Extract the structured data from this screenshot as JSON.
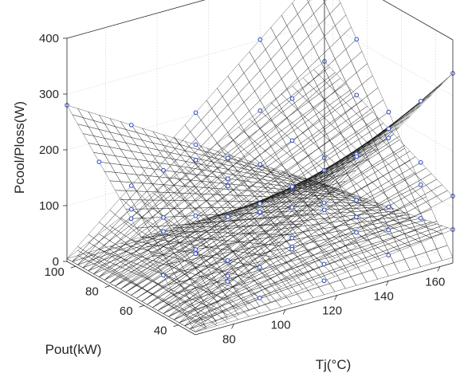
{
  "chart_data": {
    "type": "surface3d",
    "title": "",
    "xlabel": "Tj(°C)",
    "ylabel": "Pout(kW)",
    "zlabel": "Pcool/Ploss(W)",
    "xlim": [
      65,
      165
    ],
    "ylim": [
      30,
      105
    ],
    "zlim": [
      0,
      400
    ],
    "x_ticks": [
      "80",
      "100",
      "120",
      "140",
      "160"
    ],
    "y_ticks": [
      "40",
      "60",
      "80",
      "100"
    ],
    "z_ticks": [
      "0",
      "100",
      "200",
      "300",
      "400"
    ],
    "grid": true,
    "colormap": "viridis",
    "surfaces": [
      {
        "z_at_corners": {
          "xmin_ymin": 5,
          "xmax_ymin": 60,
          "xmin_ymax": 280,
          "xmax_ymax": 10
        }
      },
      {
        "z_at_corners": {
          "xmin_ymin": 5,
          "xmax_ymin": 120,
          "xmin_ymax": 5,
          "xmax_ymax": 230
        }
      },
      {
        "z_at_corners": {
          "xmin_ymin": 5,
          "xmax_ymin": 340,
          "xmin_ymax": 5,
          "xmax_ymax": 10
        }
      },
      {
        "z_at_corners": {
          "xmin_ymin": 5,
          "xmax_ymin": 10,
          "xmin_ymax": 5,
          "xmax_ymax": 400
        }
      }
    ]
  }
}
